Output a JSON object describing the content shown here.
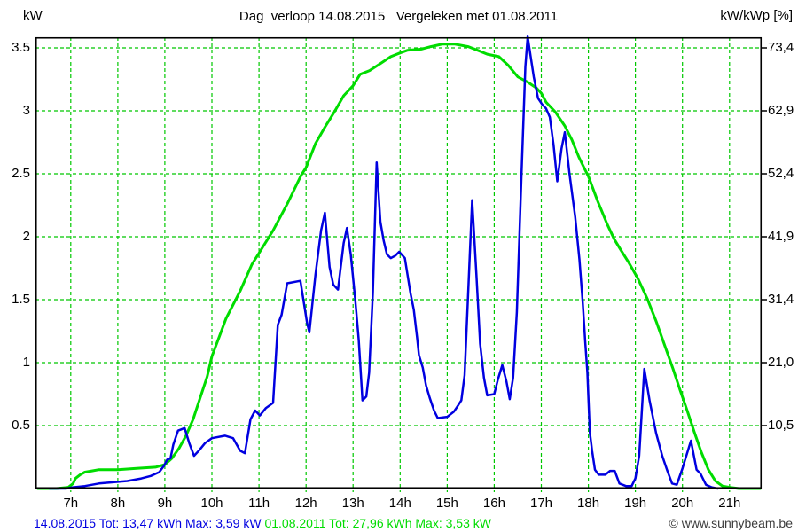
{
  "header": {
    "title": "Dag  verloop 14.08.2015   Vergeleken met 01.08.2011",
    "left_axis_unit": "kW",
    "right_axis_unit": "kW/kWp [%]"
  },
  "footer": {
    "legend_2015": "14.08.2015 Tot: 13,47 kWh Max: 3,59 kW",
    "legend_2011": "01.08.2011 Tot: 27,96 kWh Max: 3,53 kW",
    "watermark": "© www.sunnybeam.be"
  },
  "colors": {
    "series_2015_blue": "#0000e0",
    "series_2011_green": "#00dc00",
    "grid_green": "#00c800",
    "axis_black": "#000000",
    "watermark_gray": "#3c3c3c"
  },
  "chart_data": {
    "type": "line",
    "title": "Dag verloop 14.08.2015 Vergeleken met 01.08.2011",
    "grid": true,
    "legend_position": "bottom",
    "x_axis": {
      "unit": "h",
      "range_hours": [
        6.25,
        21.68
      ],
      "tick_hours": [
        7,
        8,
        9,
        10,
        11,
        12,
        13,
        14,
        15,
        16,
        17,
        18,
        19,
        20,
        21
      ],
      "tick_labels": [
        "7h",
        "8h",
        "9h",
        "10h",
        "11h",
        "12h",
        "13h",
        "14h",
        "15h",
        "16h",
        "17h",
        "18h",
        "19h",
        "20h",
        "21h"
      ]
    },
    "y_axis_left": {
      "unit": "kW",
      "range": [
        0,
        3.59
      ],
      "ticks": [
        {
          "value": 0.5,
          "label": "0.5",
          "right_label": "10,5"
        },
        {
          "value": 1.0,
          "label": "1",
          "right_label": "21,0"
        },
        {
          "value": 1.5,
          "label": "1.5",
          "right_label": "31,4"
        },
        {
          "value": 2.0,
          "label": "2",
          "right_label": "41,9"
        },
        {
          "value": 2.5,
          "label": "2.5",
          "right_label": "52,4"
        },
        {
          "value": 3.0,
          "label": "3",
          "right_label": "62,9"
        },
        {
          "value": 3.5,
          "label": "3.5",
          "right_label": "73,4"
        }
      ]
    },
    "y_axis_right": {
      "unit": "kW/kWp [%]",
      "tick_labels": [
        "10,5",
        "21,0",
        "31,4",
        "41,9",
        "52,4",
        "62,9",
        "73,4"
      ]
    },
    "series": [
      {
        "name": "01.08.2011",
        "color": "#00dc00",
        "stroke_width": 3,
        "total": "27,96 kWh",
        "max": "3,53 kW",
        "points": [
          [
            6.3,
            0
          ],
          [
            6.7,
            0
          ],
          [
            6.95,
            0.01
          ],
          [
            7.05,
            0.04
          ],
          [
            7.1,
            0.08
          ],
          [
            7.2,
            0.11
          ],
          [
            7.3,
            0.13
          ],
          [
            7.45,
            0.14
          ],
          [
            7.6,
            0.15
          ],
          [
            8.0,
            0.15
          ],
          [
            8.4,
            0.16
          ],
          [
            8.8,
            0.17
          ],
          [
            9.0,
            0.19
          ],
          [
            9.15,
            0.24
          ],
          [
            9.3,
            0.32
          ],
          [
            9.45,
            0.42
          ],
          [
            9.6,
            0.55
          ],
          [
            9.75,
            0.72
          ],
          [
            9.9,
            0.89
          ],
          [
            10.0,
            1.05
          ],
          [
            10.15,
            1.2
          ],
          [
            10.3,
            1.35
          ],
          [
            10.6,
            1.57
          ],
          [
            10.85,
            1.78
          ],
          [
            11.0,
            1.87
          ],
          [
            11.3,
            2.05
          ],
          [
            11.6,
            2.26
          ],
          [
            11.9,
            2.49
          ],
          [
            12.0,
            2.55
          ],
          [
            12.2,
            2.74
          ],
          [
            12.4,
            2.87
          ],
          [
            12.6,
            2.99
          ],
          [
            12.8,
            3.12
          ],
          [
            13.0,
            3.2
          ],
          [
            13.15,
            3.29
          ],
          [
            13.35,
            3.32
          ],
          [
            13.6,
            3.38
          ],
          [
            13.8,
            3.43
          ],
          [
            14.0,
            3.46
          ],
          [
            14.15,
            3.48
          ],
          [
            14.45,
            3.49
          ],
          [
            14.65,
            3.51
          ],
          [
            14.9,
            3.53
          ],
          [
            15.15,
            3.53
          ],
          [
            15.45,
            3.51
          ],
          [
            15.65,
            3.48
          ],
          [
            15.85,
            3.45
          ],
          [
            16.1,
            3.43
          ],
          [
            16.3,
            3.36
          ],
          [
            16.5,
            3.27
          ],
          [
            16.7,
            3.23
          ],
          [
            16.9,
            3.18
          ],
          [
            17.0,
            3.14
          ],
          [
            17.1,
            3.07
          ],
          [
            17.3,
            2.99
          ],
          [
            17.5,
            2.88
          ],
          [
            17.65,
            2.77
          ],
          [
            17.8,
            2.63
          ],
          [
            17.92,
            2.54
          ],
          [
            18.0,
            2.48
          ],
          [
            18.2,
            2.28
          ],
          [
            18.4,
            2.1
          ],
          [
            18.55,
            1.98
          ],
          [
            18.68,
            1.9
          ],
          [
            18.85,
            1.8
          ],
          [
            19.05,
            1.67
          ],
          [
            19.25,
            1.51
          ],
          [
            19.45,
            1.32
          ],
          [
            19.6,
            1.16
          ],
          [
            19.8,
            0.95
          ],
          [
            19.95,
            0.78
          ],
          [
            20.1,
            0.62
          ],
          [
            20.25,
            0.45
          ],
          [
            20.4,
            0.29
          ],
          [
            20.55,
            0.15
          ],
          [
            20.7,
            0.06
          ],
          [
            20.85,
            0.02
          ],
          [
            21.0,
            0.01
          ],
          [
            21.2,
            0
          ],
          [
            21.65,
            0
          ]
        ]
      },
      {
        "name": "14.08.2015",
        "color": "#0000e0",
        "stroke_width": 2.5,
        "total": "13,47 kWh",
        "max": "3,59 kW",
        "points": [
          [
            6.55,
            0
          ],
          [
            6.9,
            0
          ],
          [
            7.05,
            0.01
          ],
          [
            7.3,
            0.02
          ],
          [
            7.6,
            0.04
          ],
          [
            7.9,
            0.05
          ],
          [
            8.2,
            0.06
          ],
          [
            8.5,
            0.08
          ],
          [
            8.7,
            0.1
          ],
          [
            8.88,
            0.13
          ],
          [
            8.98,
            0.18
          ],
          [
            9.05,
            0.23
          ],
          [
            9.12,
            0.24
          ],
          [
            9.18,
            0.35
          ],
          [
            9.28,
            0.46
          ],
          [
            9.42,
            0.48
          ],
          [
            9.52,
            0.36
          ],
          [
            9.62,
            0.26
          ],
          [
            9.72,
            0.3
          ],
          [
            9.85,
            0.36
          ],
          [
            10.0,
            0.4
          ],
          [
            10.28,
            0.42
          ],
          [
            10.45,
            0.4
          ],
          [
            10.6,
            0.3
          ],
          [
            10.7,
            0.28
          ],
          [
            10.82,
            0.55
          ],
          [
            10.92,
            0.62
          ],
          [
            11.02,
            0.58
          ],
          [
            11.15,
            0.64
          ],
          [
            11.3,
            0.68
          ],
          [
            11.4,
            1.3
          ],
          [
            11.48,
            1.38
          ],
          [
            11.6,
            1.63
          ],
          [
            11.88,
            1.65
          ],
          [
            12.02,
            1.32
          ],
          [
            12.07,
            1.24
          ],
          [
            12.2,
            1.7
          ],
          [
            12.32,
            2.05
          ],
          [
            12.4,
            2.19
          ],
          [
            12.5,
            1.76
          ],
          [
            12.58,
            1.62
          ],
          [
            12.68,
            1.58
          ],
          [
            12.8,
            1.95
          ],
          [
            12.87,
            2.07
          ],
          [
            12.95,
            1.86
          ],
          [
            13.05,
            1.48
          ],
          [
            13.12,
            1.18
          ],
          [
            13.2,
            0.7
          ],
          [
            13.28,
            0.73
          ],
          [
            13.34,
            0.92
          ],
          [
            13.42,
            1.55
          ],
          [
            13.5,
            2.59
          ],
          [
            13.58,
            2.12
          ],
          [
            13.65,
            1.97
          ],
          [
            13.72,
            1.86
          ],
          [
            13.8,
            1.83
          ],
          [
            13.9,
            1.85
          ],
          [
            13.98,
            1.88
          ],
          [
            14.1,
            1.83
          ],
          [
            14.22,
            1.55
          ],
          [
            14.29,
            1.42
          ],
          [
            14.36,
            1.2
          ],
          [
            14.4,
            1.06
          ],
          [
            14.48,
            0.96
          ],
          [
            14.55,
            0.82
          ],
          [
            14.63,
            0.72
          ],
          [
            14.72,
            0.62
          ],
          [
            14.8,
            0.56
          ],
          [
            15.0,
            0.57
          ],
          [
            15.14,
            0.61
          ],
          [
            15.23,
            0.66
          ],
          [
            15.3,
            0.7
          ],
          [
            15.37,
            0.9
          ],
          [
            15.44,
            1.5
          ],
          [
            15.53,
            2.29
          ],
          [
            15.62,
            1.7
          ],
          [
            15.7,
            1.15
          ],
          [
            15.78,
            0.88
          ],
          [
            15.85,
            0.74
          ],
          [
            16.0,
            0.75
          ],
          [
            16.08,
            0.87
          ],
          [
            16.17,
            0.98
          ],
          [
            16.26,
            0.85
          ],
          [
            16.33,
            0.71
          ],
          [
            16.4,
            0.88
          ],
          [
            16.48,
            1.4
          ],
          [
            16.58,
            2.5
          ],
          [
            16.66,
            3.35
          ],
          [
            16.71,
            3.59
          ],
          [
            16.77,
            3.44
          ],
          [
            16.84,
            3.27
          ],
          [
            16.93,
            3.1
          ],
          [
            17.02,
            3.05
          ],
          [
            17.1,
            3.02
          ],
          [
            17.18,
            2.95
          ],
          [
            17.26,
            2.73
          ],
          [
            17.34,
            2.44
          ],
          [
            17.43,
            2.7
          ],
          [
            17.5,
            2.83
          ],
          [
            17.6,
            2.5
          ],
          [
            17.72,
            2.16
          ],
          [
            17.81,
            1.82
          ],
          [
            17.88,
            1.48
          ],
          [
            17.93,
            1.18
          ],
          [
            17.98,
            0.92
          ],
          [
            18.03,
            0.45
          ],
          [
            18.08,
            0.3
          ],
          [
            18.14,
            0.15
          ],
          [
            18.22,
            0.11
          ],
          [
            18.36,
            0.11
          ],
          [
            18.46,
            0.14
          ],
          [
            18.56,
            0.14
          ],
          [
            18.66,
            0.04
          ],
          [
            18.8,
            0.02
          ],
          [
            18.92,
            0.02
          ],
          [
            19.0,
            0.08
          ],
          [
            19.08,
            0.26
          ],
          [
            19.19,
            0.95
          ],
          [
            19.3,
            0.7
          ],
          [
            19.44,
            0.44
          ],
          [
            19.57,
            0.26
          ],
          [
            19.68,
            0.14
          ],
          [
            19.78,
            0.04
          ],
          [
            19.88,
            0.03
          ],
          [
            20.0,
            0.16
          ],
          [
            20.18,
            0.38
          ],
          [
            20.3,
            0.15
          ],
          [
            20.38,
            0.12
          ],
          [
            20.5,
            0.03
          ],
          [
            20.62,
            0.01
          ],
          [
            20.75,
            0
          ]
        ]
      }
    ]
  }
}
